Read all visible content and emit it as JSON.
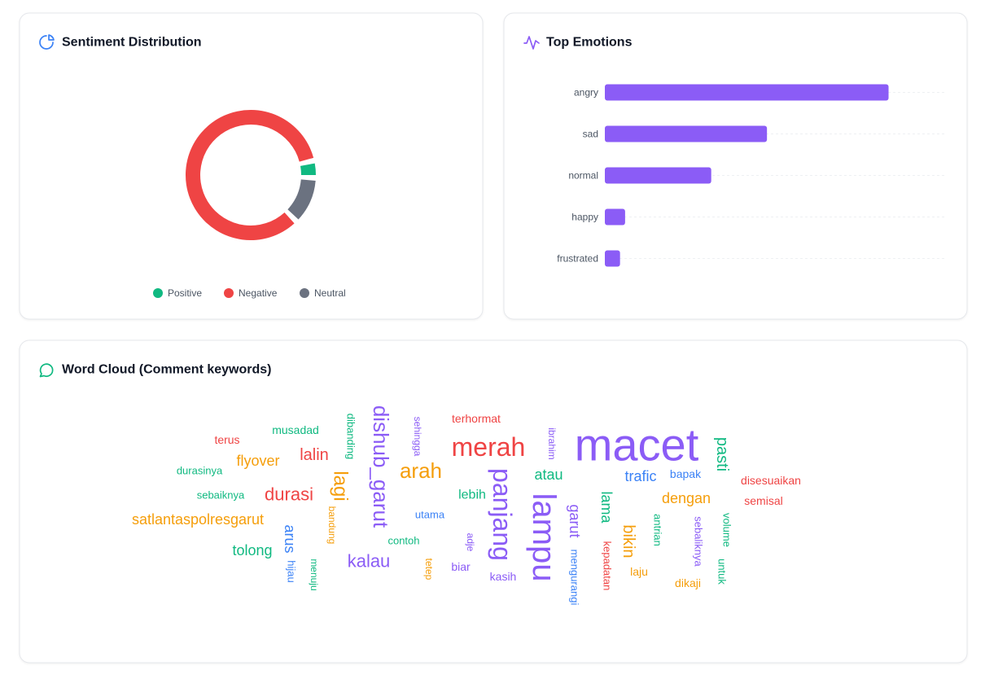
{
  "chart_data": [
    {
      "type": "pie",
      "title": "Sentiment Distribution",
      "categories": [
        "Positive",
        "Negative",
        "Neutral"
      ],
      "values": [
        3,
        86,
        11
      ],
      "colors": [
        "#10b981",
        "#ef4444",
        "#6b7280"
      ],
      "legend": "bottom"
    },
    {
      "type": "barh",
      "title": "Top Emotions",
      "categories": [
        "angry",
        "sad",
        "normal",
        "happy",
        "frustrated"
      ],
      "values": [
        56,
        32,
        21,
        4,
        3
      ],
      "color": "#8b5cf6",
      "xlim": [
        0,
        67
      ],
      "grid": true
    },
    {
      "type": "wordcloud",
      "title": "Word Cloud (Comment keywords)",
      "words": [
        {
          "text": "macet",
          "value": 56,
          "color": "#8b5cf6"
        },
        {
          "text": "merah",
          "value": 32,
          "color": "#ef4444"
        },
        {
          "text": "lampu",
          "value": 40,
          "color": "#8b5cf6"
        },
        {
          "text": "panjang",
          "value": 32,
          "color": "#8b5cf6"
        },
        {
          "text": "dishub_garut",
          "value": 26,
          "color": "#8b5cf6"
        },
        {
          "text": "arah",
          "value": 26,
          "color": "#f59e0b"
        },
        {
          "text": "lagi",
          "value": 24,
          "color": "#f59e0b"
        },
        {
          "text": "durasi",
          "value": 22,
          "color": "#ef4444"
        },
        {
          "text": "lalin",
          "value": 20,
          "color": "#ef4444"
        },
        {
          "text": "flyover",
          "value": 18,
          "color": "#f59e0b"
        },
        {
          "text": "satlantaspolresgarut",
          "value": 18,
          "color": "#f59e0b"
        },
        {
          "text": "tolong",
          "value": 18,
          "color": "#10b981"
        },
        {
          "text": "kalau",
          "value": 22,
          "color": "#8b5cf6"
        },
        {
          "text": "arus",
          "value": 18,
          "color": "#3b82f6"
        },
        {
          "text": "atau",
          "value": 18,
          "color": "#10b981"
        },
        {
          "text": "pasti",
          "value": 20,
          "color": "#10b981"
        },
        {
          "text": "trafic",
          "value": 18,
          "color": "#3b82f6"
        },
        {
          "text": "bapak",
          "value": 14,
          "color": "#3b82f6"
        },
        {
          "text": "dengan",
          "value": 18,
          "color": "#f59e0b"
        },
        {
          "text": "disesuaikan",
          "value": 14,
          "color": "#ef4444"
        },
        {
          "text": "semisal",
          "value": 14,
          "color": "#ef4444"
        },
        {
          "text": "lebih",
          "value": 16,
          "color": "#10b981"
        },
        {
          "text": "utama",
          "value": 13,
          "color": "#3b82f6"
        },
        {
          "text": "contoh",
          "value": 13,
          "color": "#10b981"
        },
        {
          "text": "terhormat",
          "value": 14,
          "color": "#ef4444"
        },
        {
          "text": "musadad",
          "value": 14,
          "color": "#10b981"
        },
        {
          "text": "terus",
          "value": 14,
          "color": "#ef4444"
        },
        {
          "text": "durasinya",
          "value": 13,
          "color": "#10b981"
        },
        {
          "text": "sebaiknya",
          "value": 13,
          "color": "#10b981"
        },
        {
          "text": "dibanding",
          "value": 13,
          "color": "#10b981"
        },
        {
          "text": "sehingga",
          "value": 12,
          "color": "#8b5cf6"
        },
        {
          "text": "ibrahim",
          "value": 12,
          "color": "#8b5cf6"
        },
        {
          "text": "garut",
          "value": 18,
          "color": "#8b5cf6"
        },
        {
          "text": "mengurangi",
          "value": 13,
          "color": "#3b82f6"
        },
        {
          "text": "lama",
          "value": 18,
          "color": "#10b981"
        },
        {
          "text": "kepadatan",
          "value": 13,
          "color": "#ef4444"
        },
        {
          "text": "bikin",
          "value": 20,
          "color": "#f59e0b"
        },
        {
          "text": "laju",
          "value": 14,
          "color": "#f59e0b"
        },
        {
          "text": "antrian",
          "value": 13,
          "color": "#10b981"
        },
        {
          "text": "sebaliknya",
          "value": 13,
          "color": "#8b5cf6"
        },
        {
          "text": "volume",
          "value": 13,
          "color": "#10b981"
        },
        {
          "text": "untuk",
          "value": 13,
          "color": "#10b981"
        },
        {
          "text": "dikaji",
          "value": 14,
          "color": "#f59e0b"
        },
        {
          "text": "bandung",
          "value": 12,
          "color": "#f59e0b"
        },
        {
          "text": "hijau",
          "value": 13,
          "color": "#3b82f6"
        },
        {
          "text": "menuju",
          "value": 12,
          "color": "#10b981"
        },
        {
          "text": "adje",
          "value": 12,
          "color": "#8b5cf6"
        },
        {
          "text": "tetep",
          "value": 12,
          "color": "#f59e0b"
        },
        {
          "text": "biar",
          "value": 14,
          "color": "#8b5cf6"
        },
        {
          "text": "kasih",
          "value": 14,
          "color": "#8b5cf6"
        }
      ]
    }
  ]
}
